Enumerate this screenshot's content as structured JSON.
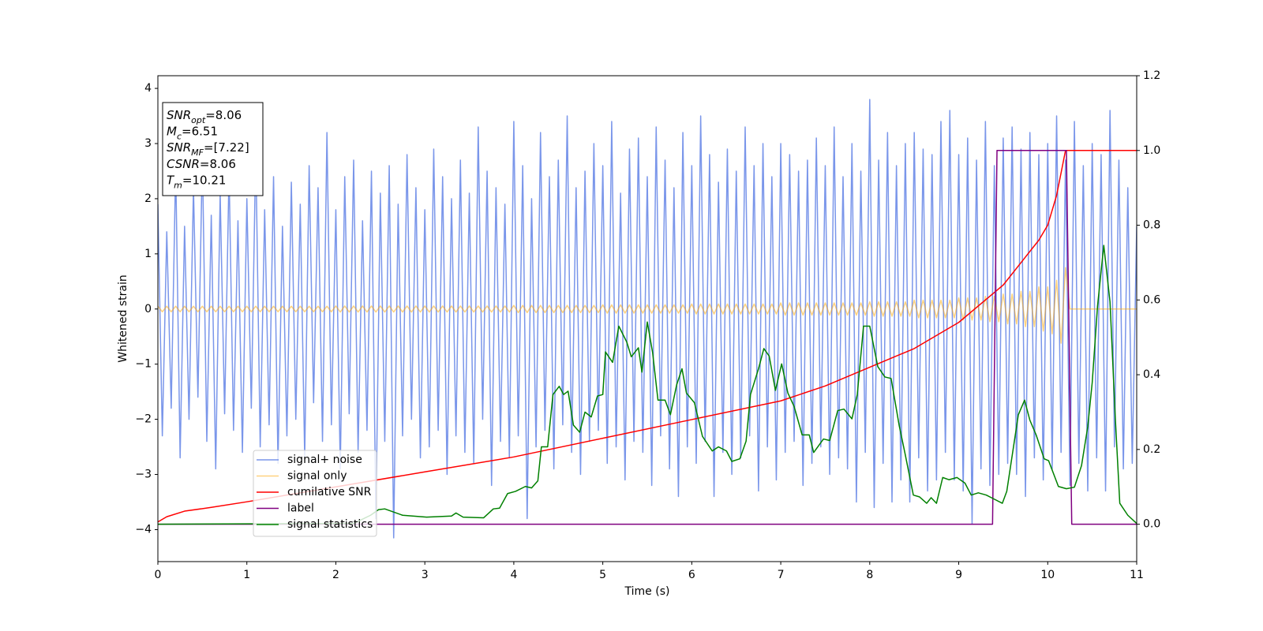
{
  "chart_data": {
    "type": "line",
    "xlabel": "Time (s)",
    "ylabel": "Whitened strain",
    "xlim": [
      0,
      11
    ],
    "ylim": [
      -4.58,
      4.23
    ],
    "y2lim": [
      -0.1,
      1.2
    ],
    "xticks": [
      0,
      1,
      2,
      3,
      4,
      5,
      6,
      7,
      8,
      9,
      10,
      11
    ],
    "yticks": [
      {
        "value": -4,
        "label": "−4"
      },
      {
        "value": -3,
        "label": "−3"
      },
      {
        "value": -2,
        "label": "−2"
      },
      {
        "value": -1,
        "label": "−1"
      },
      0,
      1,
      2,
      3,
      4
    ],
    "y2ticks": [
      {
        "value": 0,
        "label": "0.0"
      },
      {
        "value": 0.2,
        "label": "0.2"
      },
      {
        "value": 0.4,
        "label": "0.4"
      },
      {
        "value": 0.6,
        "label": "0.6"
      },
      {
        "value": 0.8,
        "label": "0.8"
      },
      {
        "value": 1.0,
        "label": "1.0"
      },
      {
        "value": 1.2,
        "label": "1.2"
      }
    ],
    "annotations": [
      {
        "symbol": "SNR",
        "subscript": "opt",
        "text": "=8.06"
      },
      {
        "symbol": "M",
        "subscript": "c",
        "text": "=6.51"
      },
      {
        "symbol": "SNR",
        "subscript": "MF",
        "text": "=[7.22]"
      },
      {
        "symbol": "CSNR",
        "text": "=8.06"
      },
      {
        "symbol": "T",
        "subscript": "m",
        "text": "=10.21"
      }
    ],
    "x": [
      0,
      0.05,
      0.1,
      0.15,
      0.2,
      0.25,
      0.3,
      0.35,
      0.4,
      0.45,
      0.5,
      0.55,
      0.6,
      0.65,
      0.7,
      0.75,
      0.8,
      0.85,
      0.9,
      0.95,
      1,
      1.05,
      1.1,
      1.15,
      1.2,
      1.25,
      1.3,
      1.35,
      1.4,
      1.45,
      1.5,
      1.55,
      1.6,
      1.65,
      1.7,
      1.75,
      1.8,
      1.85,
      1.9,
      1.95,
      2,
      2.05,
      2.1,
      2.15,
      2.2,
      2.25,
      2.3,
      2.35,
      2.4,
      2.45,
      2.5,
      2.55,
      2.6,
      2.65,
      2.7,
      2.75,
      2.8,
      2.85,
      2.9,
      2.95,
      3,
      3.05,
      3.1,
      3.15,
      3.2,
      3.25,
      3.3,
      3.35,
      3.4,
      3.45,
      3.5,
      3.55,
      3.6,
      3.65,
      3.7,
      3.75,
      3.8,
      3.85,
      3.9,
      3.95,
      4,
      4.05,
      4.1,
      4.15,
      4.2,
      4.25,
      4.3,
      4.35,
      4.4,
      4.45,
      4.5,
      4.55,
      4.6,
      4.65,
      4.7,
      4.75,
      4.8,
      4.85,
      4.9,
      4.95,
      5,
      5.05,
      5.1,
      5.15,
      5.2,
      5.25,
      5.3,
      5.35,
      5.4,
      5.45,
      5.5,
      5.55,
      5.6,
      5.65,
      5.7,
      5.75,
      5.8,
      5.85,
      5.9,
      5.95,
      6,
      6.05,
      6.1,
      6.15,
      6.2,
      6.25,
      6.3,
      6.35,
      6.4,
      6.45,
      6.5,
      6.55,
      6.6,
      6.65,
      6.7,
      6.75,
      6.8,
      6.85,
      6.9,
      6.95,
      7,
      7.05,
      7.1,
      7.15,
      7.2,
      7.25,
      7.3,
      7.35,
      7.4,
      7.45,
      7.5,
      7.55,
      7.6,
      7.65,
      7.7,
      7.75,
      7.8,
      7.85,
      7.9,
      7.95,
      8,
      8.05,
      8.1,
      8.15,
      8.2,
      8.25,
      8.3,
      8.35,
      8.4,
      8.45,
      8.5,
      8.55,
      8.6,
      8.65,
      8.7,
      8.75,
      8.8,
      8.85,
      8.9,
      8.95,
      9,
      9.05,
      9.1,
      9.15,
      9.2,
      9.25,
      9.3,
      9.35,
      9.4,
      9.45,
      9.5,
      9.55,
      9.6,
      9.65,
      9.7,
      9.75,
      9.8,
      9.85,
      9.9,
      9.95,
      10,
      10.05,
      10.1,
      10.15,
      10.2,
      10.25,
      10.3,
      10.35,
      10.4,
      10.45,
      10.5,
      10.55,
      10.6,
      10.65,
      10.7,
      10.75,
      10.8,
      10.85,
      10.9,
      10.95,
      11
    ],
    "series": [
      {
        "name": "signal+ noise",
        "color": "#4169e1",
        "alpha": 0.7,
        "values": [
          1.9,
          -2.3,
          1.4,
          -1.8,
          2.6,
          -2.7,
          1.5,
          -2.0,
          2.2,
          -1.6,
          2.8,
          -2.4,
          1.7,
          -2.9,
          2.1,
          -1.9,
          2.5,
          -2.2,
          1.6,
          -2.6,
          2.0,
          -1.8,
          2.9,
          -2.5,
          1.8,
          -2.1,
          2.4,
          -2.8,
          1.5,
          -2.3,
          2.3,
          -2.0,
          1.9,
          -2.7,
          2.6,
          -1.7,
          2.2,
          -2.4,
          3.2,
          -2.1,
          1.8,
          -2.9,
          2.4,
          -1.9,
          2.7,
          -2.6,
          1.6,
          -2.2,
          2.5,
          -3.8,
          2.1,
          -2.4,
          2.6,
          -4.15,
          1.9,
          -2.3,
          2.8,
          -2.0,
          2.2,
          -2.7,
          1.8,
          -2.5,
          2.9,
          -2.2,
          2.4,
          -3.0,
          2.0,
          -2.3,
          2.7,
          -2.6,
          2.1,
          -2.8,
          3.3,
          -2.0,
          2.5,
          -3.2,
          2.2,
          -2.4,
          1.9,
          -2.7,
          3.4,
          -2.3,
          2.6,
          -3.8,
          2.0,
          -2.5,
          3.2,
          -2.2,
          2.4,
          -2.9,
          2.7,
          -2.1,
          3.5,
          -2.6,
          2.2,
          -3.0,
          2.5,
          -2.4,
          3.0,
          -2.2,
          2.6,
          -2.8,
          3.4,
          -2.5,
          2.1,
          -3.1,
          2.9,
          -2.4,
          3.1,
          -2.6,
          2.4,
          -3.2,
          3.3,
          -2.3,
          2.7,
          -2.9,
          2.2,
          -3.4,
          3.2,
          -2.5,
          2.6,
          -2.8,
          3.5,
          -2.4,
          2.8,
          -3.4,
          2.3,
          -2.6,
          2.9,
          -3.0,
          2.5,
          -2.7,
          3.3,
          -2.3,
          2.6,
          -3.3,
          3.0,
          -2.5,
          2.4,
          -3.1,
          3.0,
          -2.6,
          2.8,
          -2.4,
          2.5,
          -3.2,
          2.7,
          -2.8,
          3.1,
          -2.5,
          2.6,
          -3.0,
          3.3,
          -2.7,
          2.4,
          -2.9,
          3.0,
          -3.5,
          2.5,
          -2.6,
          3.8,
          -3.6,
          2.7,
          -2.8,
          3.2,
          -3.5,
          2.6,
          -3.1,
          3.0,
          -3.5,
          3.2,
          -2.7,
          2.9,
          -3.3,
          2.8,
          -3.1,
          3.4,
          -2.6,
          3.6,
          -3.1,
          2.8,
          -3.3,
          3.1,
          -3.9,
          2.7,
          -2.9,
          3.4,
          -3.2,
          2.6,
          -3.0,
          3.1,
          -2.8,
          3.3,
          -3.0,
          2.9,
          -3.4,
          3.2,
          -2.7,
          2.8,
          -3.1,
          3.0,
          -2.9,
          3.5,
          -2.6,
          2.7,
          -3.2,
          3.4,
          -2.8,
          2.6,
          -3.3,
          3.0,
          -2.7,
          2.8,
          -3.3,
          3.6,
          -2.5,
          2.7,
          -2.9,
          2.2,
          -2.8,
          1.5
        ]
      },
      {
        "name": "signal only",
        "color": "#ffa500",
        "alpha": 0.5,
        "values": [
          0.05,
          -0.05,
          0.05,
          -0.05,
          0.05,
          -0.05,
          0.05,
          -0.05,
          0.05,
          -0.05,
          0.05,
          -0.05,
          0.05,
          -0.05,
          0.05,
          -0.05,
          0.05,
          -0.05,
          0.05,
          -0.05,
          0.05,
          -0.05,
          0.05,
          -0.05,
          0.05,
          -0.05,
          0.05,
          -0.05,
          0.05,
          -0.05,
          0.05,
          -0.05,
          0.05,
          -0.05,
          0.05,
          -0.05,
          0.05,
          -0.05,
          0.05,
          -0.05,
          0.055,
          -0.055,
          0.055,
          -0.055,
          0.055,
          -0.055,
          0.055,
          -0.055,
          0.055,
          -0.055,
          0.055,
          -0.055,
          0.055,
          -0.055,
          0.055,
          -0.055,
          0.055,
          -0.055,
          0.055,
          -0.055,
          0.055,
          -0.055,
          0.055,
          -0.055,
          0.055,
          -0.055,
          0.055,
          -0.055,
          0.055,
          -0.055,
          0.055,
          -0.055,
          0.055,
          -0.055,
          0.055,
          -0.055,
          0.055,
          -0.055,
          0.055,
          -0.055,
          0.065,
          -0.065,
          0.065,
          -0.065,
          0.065,
          -0.065,
          0.065,
          -0.065,
          0.065,
          -0.065,
          0.065,
          -0.065,
          0.065,
          -0.065,
          0.065,
          -0.065,
          0.065,
          -0.065,
          0.065,
          -0.065,
          0.075,
          -0.075,
          0.075,
          -0.075,
          0.075,
          -0.075,
          0.075,
          -0.075,
          0.075,
          -0.075,
          0.075,
          -0.075,
          0.075,
          -0.075,
          0.075,
          -0.075,
          0.075,
          -0.075,
          0.075,
          -0.075,
          0.09,
          -0.09,
          0.09,
          -0.09,
          0.09,
          -0.09,
          0.09,
          -0.09,
          0.09,
          -0.09,
          0.09,
          -0.09,
          0.09,
          -0.09,
          0.09,
          -0.09,
          0.09,
          -0.09,
          0.09,
          -0.09,
          0.11,
          -0.11,
          0.11,
          -0.11,
          0.11,
          -0.11,
          0.11,
          -0.11,
          0.11,
          -0.11,
          0.11,
          -0.11,
          0.11,
          -0.11,
          0.11,
          -0.11,
          0.11,
          -0.11,
          0.11,
          -0.11,
          0.13,
          -0.13,
          0.13,
          -0.13,
          0.13,
          -0.13,
          0.13,
          -0.13,
          0.13,
          -0.13,
          0.16,
          -0.16,
          0.16,
          -0.16,
          0.16,
          -0.16,
          0.16,
          -0.16,
          0.16,
          -0.16,
          0.2,
          -0.2,
          0.2,
          -0.2,
          0.2,
          -0.2,
          0.23,
          -0.23,
          0.23,
          -0.23,
          0.27,
          -0.27,
          0.27,
          -0.27,
          0.32,
          -0.32,
          0.32,
          -0.32,
          0.4,
          -0.4,
          0.4,
          -0.45,
          0.52,
          -0.62,
          0.75,
          0,
          0,
          0,
          0,
          0,
          0,
          0,
          0,
          0,
          0,
          0,
          0,
          0,
          0,
          0,
          0
        ]
      },
      {
        "name": "cumilative SNR",
        "color": "#ff0000",
        "axis": "y2",
        "x": [
          0,
          0.1,
          0.3,
          0.6,
          1,
          2,
          3,
          4,
          5,
          6,
          7,
          7.5,
          8,
          8.5,
          9,
          9.3,
          9.5,
          9.7,
          9.9,
          10,
          10.1,
          10.2,
          11
        ],
        "values": [
          0.006,
          0.02,
          0.035,
          0.045,
          0.06,
          0.1,
          0.14,
          0.18,
          0.23,
          0.28,
          0.33,
          0.37,
          0.42,
          0.47,
          0.54,
          0.6,
          0.64,
          0.7,
          0.76,
          0.8,
          0.88,
          1.0,
          1.0
        ]
      },
      {
        "name": "label",
        "color": "#800080",
        "axis": "y2",
        "x": [
          0,
          9.38,
          9.43,
          10.21,
          10.27,
          11
        ],
        "values": [
          0,
          0,
          1,
          1,
          0,
          0
        ]
      },
      {
        "name": "signal statistics",
        "color": "#008000",
        "axis": "y2",
        "x": [
          0,
          2.2,
          2.39,
          2.48,
          2.55,
          2.75,
          3.02,
          3.3,
          3.35,
          3.43,
          3.66,
          3.77,
          3.84,
          3.93,
          4.02,
          4.13,
          4.2,
          4.27,
          4.31,
          4.38,
          4.44,
          4.51,
          4.56,
          4.61,
          4.67,
          4.74,
          4.8,
          4.87,
          4.94,
          5.0,
          5.03,
          5.11,
          5.18,
          5.27,
          5.32,
          5.4,
          5.44,
          5.5,
          5.56,
          5.62,
          5.7,
          5.76,
          5.83,
          5.89,
          5.94,
          6.03,
          6.12,
          6.23,
          6.3,
          6.39,
          6.45,
          6.54,
          6.61,
          6.66,
          6.75,
          6.81,
          6.87,
          6.94,
          7.01,
          7.08,
          7.15,
          7.24,
          7.32,
          7.37,
          7.48,
          7.55,
          7.64,
          7.71,
          7.8,
          7.86,
          7.93,
          8.0,
          8.09,
          8.17,
          8.24,
          8.33,
          8.4,
          8.49,
          8.56,
          8.64,
          8.69,
          8.75,
          8.82,
          8.89,
          8.98,
          9.07,
          9.14,
          9.22,
          9.31,
          9.4,
          9.49,
          9.54,
          9.67,
          9.74,
          9.8,
          9.87,
          9.96,
          10.01,
          10.12,
          10.21,
          10.3,
          10.38,
          10.45,
          10.5,
          10.56,
          10.63,
          10.7,
          10.76,
          10.81,
          10.9,
          11.0
        ],
        "values": [
          0.0,
          0.002,
          0.024,
          0.039,
          0.041,
          0.024,
          0.019,
          0.022,
          0.03,
          0.019,
          0.017,
          0.041,
          0.043,
          0.082,
          0.088,
          0.101,
          0.097,
          0.116,
          0.207,
          0.207,
          0.347,
          0.369,
          0.347,
          0.356,
          0.265,
          0.246,
          0.3,
          0.287,
          0.343,
          0.347,
          0.461,
          0.433,
          0.53,
          0.487,
          0.448,
          0.472,
          0.407,
          0.541,
          0.459,
          0.332,
          0.332,
          0.293,
          0.373,
          0.416,
          0.351,
          0.325,
          0.235,
          0.196,
          0.207,
          0.196,
          0.168,
          0.175,
          0.222,
          0.347,
          0.416,
          0.47,
          0.45,
          0.358,
          0.429,
          0.351,
          0.315,
          0.239,
          0.239,
          0.192,
          0.228,
          0.224,
          0.304,
          0.308,
          0.282,
          0.347,
          0.53,
          0.53,
          0.422,
          0.394,
          0.39,
          0.265,
          0.185,
          0.078,
          0.073,
          0.056,
          0.071,
          0.056,
          0.125,
          0.119,
          0.125,
          0.11,
          0.078,
          0.084,
          0.078,
          0.067,
          0.056,
          0.088,
          0.293,
          0.332,
          0.278,
          0.239,
          0.175,
          0.17,
          0.101,
          0.095,
          0.099,
          0.157,
          0.261,
          0.379,
          0.584,
          0.746,
          0.595,
          0.282,
          0.056,
          0.024,
          0.002
        ]
      }
    ]
  }
}
